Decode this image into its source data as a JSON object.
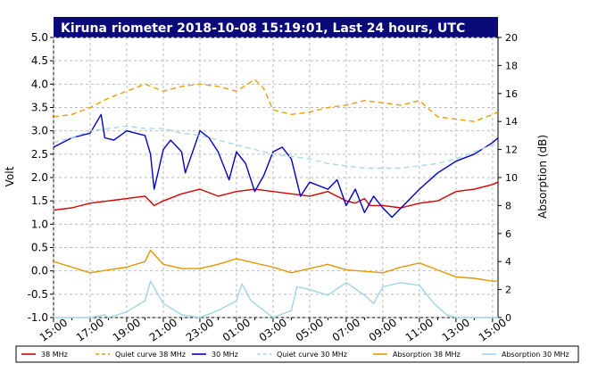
{
  "chart_data": {
    "type": "line",
    "title": "Kiruna riometer 2018-10-08 15:19:01, Last 24 hours, UTC",
    "ylabel": "Volt",
    "ylabel_right": "Absorption (dB)",
    "ylim": [
      -1.0,
      5.0
    ],
    "ylim_right": [
      0,
      20
    ],
    "yticks": [
      "5.0",
      "4.5",
      "4.0",
      "3.5",
      "3.0",
      "2.5",
      "2.0",
      "1.5",
      "1.0",
      "0.5",
      "0.0",
      "-0.5",
      "-1.0"
    ],
    "yticks_right": [
      "20",
      "18",
      "16",
      "14",
      "12",
      "10",
      "8",
      "6",
      "4",
      "2",
      "0"
    ],
    "xticks": [
      "15:00",
      "17:00",
      "19:00",
      "21:00",
      "23:00",
      "01:00",
      "03:00",
      "05:00",
      "07:00",
      "09:00",
      "11:00",
      "13:00",
      "15:00"
    ],
    "xlim_hours": [
      0,
      24.3
    ],
    "grid": true,
    "legend_position": "bottom",
    "series": [
      {
        "name": "38 MHz",
        "axis": "left",
        "color": "#d40000",
        "style": "solid",
        "x": [
          0,
          1,
          2,
          3,
          4,
          5,
          5.5,
          6,
          7,
          8,
          9,
          10,
          11,
          12,
          13,
          14,
          15,
          16,
          16.5,
          17,
          17.3,
          18,
          19,
          20,
          21,
          22,
          23,
          24,
          24.3
        ],
        "y": [
          1.3,
          1.35,
          1.45,
          1.5,
          1.55,
          1.6,
          1.4,
          1.5,
          1.65,
          1.75,
          1.6,
          1.7,
          1.75,
          1.7,
          1.65,
          1.6,
          1.7,
          1.5,
          1.45,
          1.55,
          1.4,
          1.4,
          1.35,
          1.45,
          1.5,
          1.7,
          1.75,
          1.85,
          1.9
        ]
      },
      {
        "name": "Quiet curve 38 MHz",
        "axis": "left",
        "color": "#e6a000",
        "style": "dashed",
        "x": [
          0,
          1,
          2,
          3,
          4,
          5,
          6,
          7,
          8,
          9,
          10,
          11,
          11.5,
          12,
          13,
          14,
          15,
          16,
          17,
          18,
          19,
          20,
          21,
          22,
          23,
          24,
          24.3
        ],
        "y": [
          3.3,
          3.35,
          3.5,
          3.7,
          3.85,
          4.0,
          3.85,
          3.95,
          4.0,
          3.95,
          3.85,
          4.1,
          3.9,
          3.45,
          3.35,
          3.4,
          3.5,
          3.55,
          3.65,
          3.6,
          3.55,
          3.65,
          3.3,
          3.25,
          3.2,
          3.35,
          3.4
        ]
      },
      {
        "name": "30 MHz",
        "axis": "left",
        "color": "#0000c8",
        "style": "solid",
        "x": [
          0,
          1,
          2,
          2.6,
          2.8,
          3.3,
          4,
          5,
          5.3,
          5.5,
          6,
          6.4,
          7,
          7.2,
          8,
          8.5,
          9,
          9.6,
          10,
          10.5,
          11,
          11.5,
          12,
          12.5,
          13,
          13.5,
          14,
          15,
          15.5,
          16,
          16.5,
          17,
          17.5,
          18,
          18.5,
          19,
          20,
          21,
          22,
          23,
          24,
          24.3
        ],
        "y": [
          2.65,
          2.85,
          2.95,
          3.35,
          2.85,
          2.8,
          3.0,
          2.9,
          2.5,
          1.75,
          2.6,
          2.8,
          2.55,
          2.1,
          3.0,
          2.85,
          2.55,
          1.95,
          2.55,
          2.3,
          1.7,
          2.05,
          2.55,
          2.65,
          2.4,
          1.6,
          1.9,
          1.75,
          1.95,
          1.4,
          1.75,
          1.25,
          1.6,
          1.35,
          1.15,
          1.35,
          1.75,
          2.1,
          2.35,
          2.5,
          2.75,
          2.85
        ]
      },
      {
        "name": "Quiet curve 30 MHz",
        "axis": "left",
        "color": "#a8d8e8",
        "style": "dashed",
        "x": [
          0,
          1,
          2,
          3,
          4,
          5,
          6,
          7,
          8,
          9,
          10,
          11,
          12,
          13,
          14,
          15,
          16,
          17,
          18,
          19,
          20,
          21,
          22,
          23,
          24,
          24.3
        ],
        "y": [
          2.75,
          2.85,
          3.0,
          3.05,
          3.1,
          3.05,
          3.05,
          2.95,
          2.9,
          2.8,
          2.7,
          2.6,
          2.5,
          2.45,
          2.4,
          2.3,
          2.25,
          2.2,
          2.2,
          2.2,
          2.25,
          2.3,
          2.4,
          2.55,
          2.7,
          2.75
        ]
      },
      {
        "name": "Absorption 38 MHz",
        "axis": "right",
        "color": "#e69600",
        "style": "solid",
        "x": [
          0,
          1,
          2,
          3,
          4,
          5,
          5.3,
          6,
          7,
          8,
          9,
          10,
          11,
          12,
          13,
          14,
          15,
          16,
          17,
          18,
          19,
          20,
          21,
          22,
          23,
          24,
          24.3
        ],
        "y": [
          4.0,
          3.6,
          3.2,
          3.4,
          3.6,
          4.0,
          4.8,
          3.8,
          3.5,
          3.5,
          3.8,
          4.2,
          3.9,
          3.6,
          3.2,
          3.5,
          3.8,
          3.4,
          3.3,
          3.2,
          3.6,
          3.9,
          3.4,
          2.9,
          2.8,
          2.6,
          2.6
        ]
      },
      {
        "name": "Absorption 30 MHz",
        "axis": "right",
        "color": "#a0d4e8",
        "style": "solid",
        "x": [
          0,
          2,
          2.8,
          3,
          4,
          5,
          5.3,
          6,
          7,
          8,
          9,
          10,
          10.3,
          10.8,
          12,
          13,
          13.3,
          14,
          15,
          16,
          17,
          17.5,
          18,
          19,
          20,
          20.8,
          21.5,
          22,
          24,
          24.3
        ],
        "y": [
          0,
          0,
          0.2,
          0,
          0.4,
          1.2,
          2.6,
          1.0,
          0.2,
          0,
          0.5,
          1.2,
          2.4,
          1.2,
          0,
          0.5,
          2.2,
          2.0,
          1.6,
          2.5,
          1.6,
          1.0,
          2.2,
          2.5,
          2.3,
          1.0,
          0.2,
          0,
          0,
          0
        ]
      }
    ]
  }
}
